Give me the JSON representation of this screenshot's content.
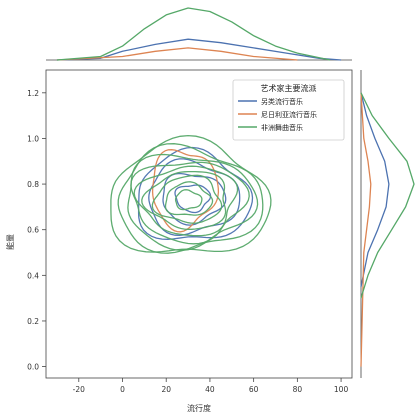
{
  "chart_data": {
    "type": "jointplot-kde",
    "xlabel": "流行度",
    "ylabel": "能量",
    "xlim": [
      -35,
      105
    ],
    "ylim": [
      -0.05,
      1.3
    ],
    "xticks": [
      -20,
      0,
      20,
      40,
      60,
      80,
      100
    ],
    "yticks": [
      0.0,
      0.2,
      0.4,
      0.6,
      0.8,
      1.0,
      1.2
    ],
    "legend": {
      "title": "艺术家主要流派",
      "placement": "top-right",
      "entries": [
        {
          "name": "另类流行音乐",
          "color": "#4c72b0"
        },
        {
          "name": "尼日利亚流行音乐",
          "color": "#dd8452"
        },
        {
          "name": "非洲舞曲音乐",
          "color": "#55a868"
        }
      ]
    },
    "series": [
      {
        "name": "另类流行音乐",
        "color": "#4c72b0",
        "center": [
          32,
          0.74
        ],
        "spread": [
          26,
          0.23
        ],
        "levels": [
          0.3,
          0.55,
          0.8,
          1.0
        ],
        "marginal_x": [
          [
            -30,
            0.0
          ],
          [
            -10,
            0.01
          ],
          [
            0,
            0.05
          ],
          [
            15,
            0.09
          ],
          [
            30,
            0.12
          ],
          [
            45,
            0.1
          ],
          [
            60,
            0.07
          ],
          [
            75,
            0.04
          ],
          [
            90,
            0.01
          ],
          [
            100,
            0.0
          ]
        ],
        "marginal_y": [
          [
            0.35,
            0.0
          ],
          [
            0.5,
            0.05
          ],
          [
            0.6,
            0.12
          ],
          [
            0.7,
            0.18
          ],
          [
            0.8,
            0.2
          ],
          [
            0.9,
            0.17
          ],
          [
            1.0,
            0.1
          ],
          [
            1.1,
            0.04
          ],
          [
            1.2,
            0.0
          ]
        ]
      },
      {
        "name": "尼日利亚流行音乐",
        "color": "#dd8452",
        "center": [
          28,
          0.78
        ],
        "spread": [
          15,
          0.2
        ],
        "levels": [
          1.0
        ],
        "marginal_x": [
          [
            -30,
            0.0
          ],
          [
            0,
            0.02
          ],
          [
            15,
            0.05
          ],
          [
            30,
            0.07
          ],
          [
            45,
            0.05
          ],
          [
            60,
            0.02
          ],
          [
            80,
            0.0
          ]
        ],
        "marginal_y": [
          [
            0.0,
            0.0
          ],
          [
            0.5,
            0.02
          ],
          [
            0.7,
            0.06
          ],
          [
            0.8,
            0.07
          ],
          [
            0.9,
            0.05
          ],
          [
            1.0,
            0.02
          ],
          [
            1.2,
            0.0
          ]
        ]
      },
      {
        "name": "非洲舞曲音乐",
        "color": "#55a868",
        "center": [
          30,
          0.73
        ],
        "spread": [
          30,
          0.24
        ],
        "levels": [
          0.2,
          0.35,
          0.5,
          0.62,
          0.74,
          0.86,
          0.98,
          1.1,
          1.22
        ],
        "marginal_x": [
          [
            -30,
            0.0
          ],
          [
            -10,
            0.02
          ],
          [
            0,
            0.08
          ],
          [
            10,
            0.18
          ],
          [
            20,
            0.26
          ],
          [
            30,
            0.3
          ],
          [
            40,
            0.28
          ],
          [
            50,
            0.22
          ],
          [
            60,
            0.14
          ],
          [
            70,
            0.08
          ],
          [
            80,
            0.04
          ],
          [
            95,
            0.0
          ]
        ],
        "marginal_y": [
          [
            0.3,
            0.0
          ],
          [
            0.4,
            0.05
          ],
          [
            0.5,
            0.12
          ],
          [
            0.6,
            0.22
          ],
          [
            0.7,
            0.32
          ],
          [
            0.8,
            0.38
          ],
          [
            0.9,
            0.33
          ],
          [
            1.0,
            0.2
          ],
          [
            1.1,
            0.08
          ],
          [
            1.2,
            0.0
          ]
        ]
      }
    ]
  }
}
